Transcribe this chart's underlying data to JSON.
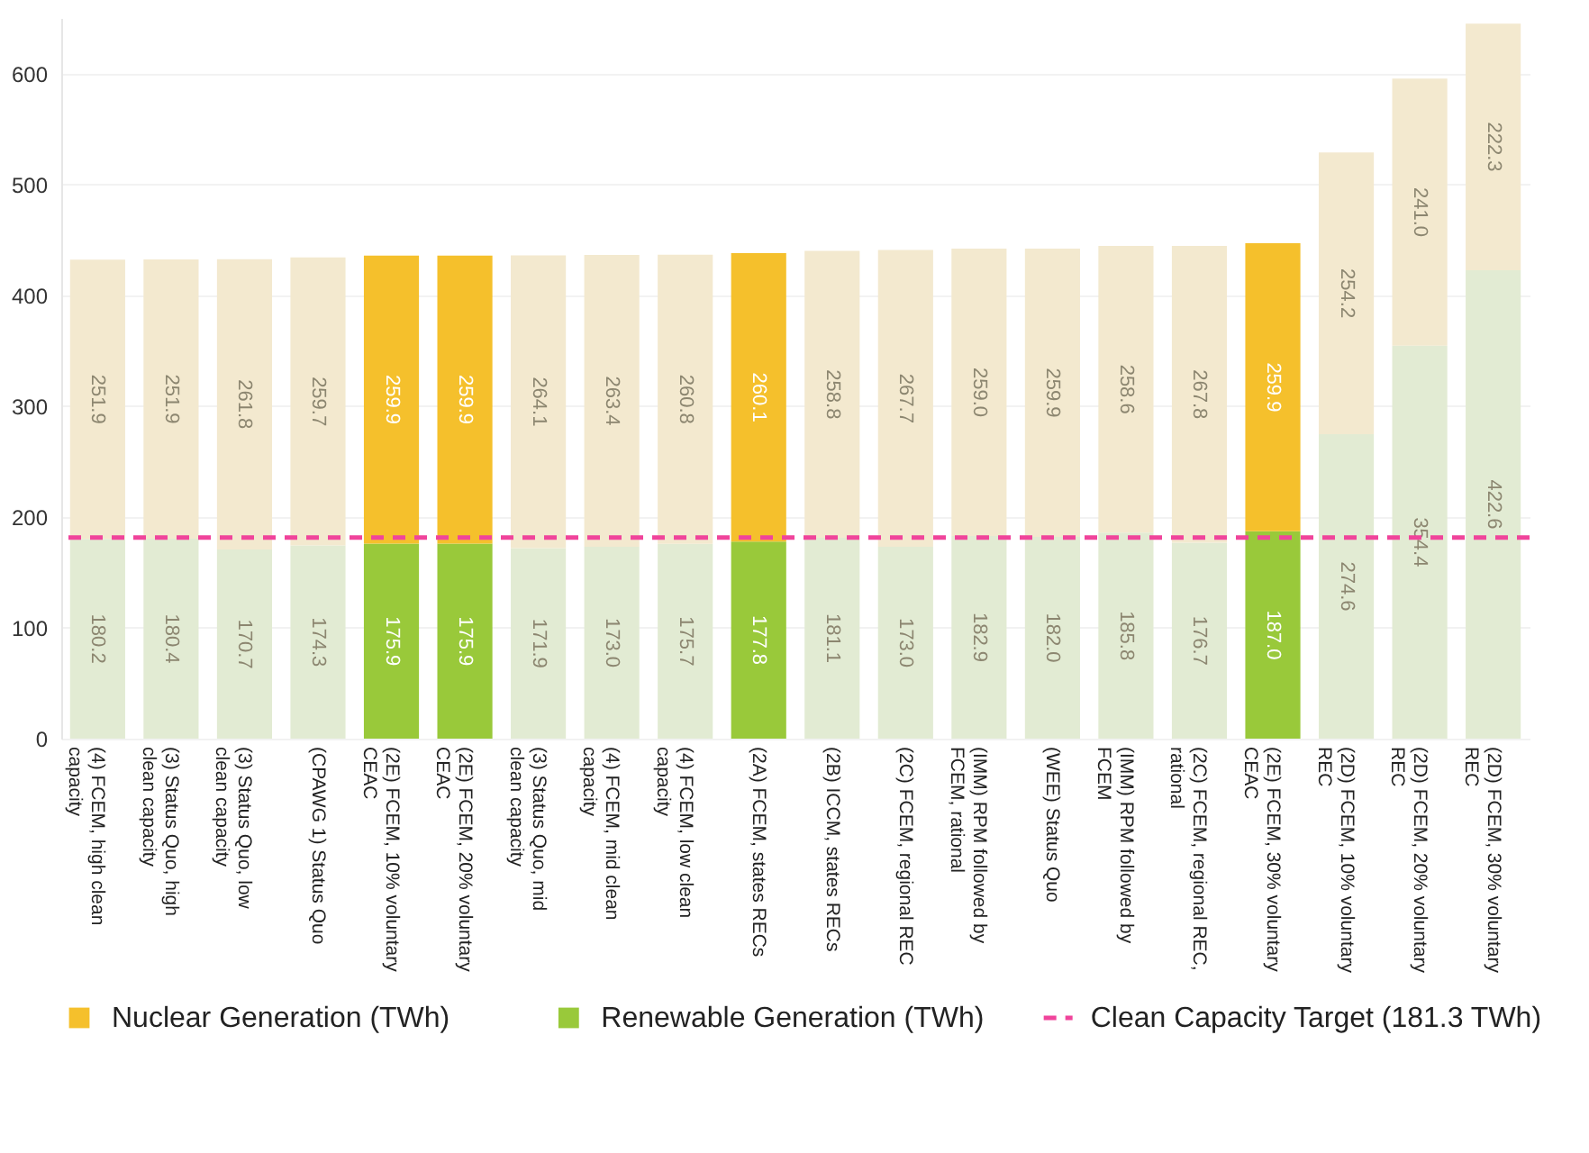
{
  "chart_data": {
    "type": "bar",
    "stacked": true,
    "categories": [
      "(4) FCEM, high clean capacity",
      "(3) Status Quo, high clean capacity",
      "(3) Status Quo, low clean capacity",
      "(CPAWG 1) Status Quo",
      "(2E) FCEM, 10% voluntary CEAC",
      "(2E) FCEM, 20% voluntary CEAC",
      "(3) Status Quo, mid clean capacity",
      "(4) FCEM, mid clean capacity",
      "(4) FCEM, low clean capacity",
      "(2A) FCEM, states RECs",
      "(2B) ICCM, states RECs",
      "(2C) FCEM, regional REC",
      "(IMM) RPM followed by FCEM, rational",
      "(WEE) Status Quo",
      "(IMM) RPM followed by FCEM",
      "(2C) FCEM, regional REC, rational",
      "(2E) FCEM, 30% voluntary CEAC",
      "(2D) FCEM, 10% voluntary REC",
      "(2D) FCEM, 20% voluntary REC",
      "(2D) FCEM, 30% voluntary REC"
    ],
    "series": [
      {
        "name": "Renewable Generation (TWh)",
        "color": "#99c93a",
        "values": [
          180.2,
          180.4,
          170.7,
          174.3,
          175.9,
          175.9,
          171.9,
          173.0,
          175.7,
          177.8,
          181.1,
          173.0,
          182.9,
          182.0,
          185.8,
          176.7,
          187.0,
          274.6,
          354.4,
          422.6
        ],
        "value_labels": [
          "180.2",
          "180.4",
          "170.7",
          "174.3",
          "175.9",
          "175.9",
          "171.9",
          "173.0",
          "175.7",
          "177.8",
          "181.1",
          "173.0",
          "182.9",
          "182.0",
          "185.8",
          "176.7",
          "187.0",
          "274.6",
          "354.4",
          "422.6"
        ],
        "colors": [
          "#e2ebd3",
          "#e2ebd3",
          "#e2ebd3",
          "#e2ebd3",
          "#99c93a",
          "#99c93a",
          "#e2ebd3",
          "#e2ebd3",
          "#e2ebd3",
          "#99c93a",
          "#e2ebd3",
          "#e2ebd3",
          "#e2ebd3",
          "#e2ebd3",
          "#e2ebd3",
          "#e2ebd3",
          "#99c93a",
          "#e2ebd3",
          "#e2ebd3",
          "#e2ebd3"
        ]
      },
      {
        "name": "Nuclear Generation (TWh)",
        "color": "#f5c02c",
        "values": [
          251.9,
          251.9,
          261.8,
          259.7,
          259.9,
          259.9,
          264.1,
          263.4,
          260.8,
          260.1,
          258.8,
          267.7,
          259.0,
          259.9,
          258.6,
          267.8,
          259.9,
          254.2,
          241.0,
          222.3
        ],
        "value_labels": [
          "251.9",
          "251.9",
          "261.8",
          "259.7",
          "259.9",
          "259.9",
          "264.1",
          "263.4",
          "260.8",
          "260.1",
          "258.8",
          "267.7",
          "259.0",
          "259.9",
          "258.6",
          "267.8",
          "259.9",
          "254.2",
          "241.0",
          "222.3"
        ],
        "colors": [
          "#f3e9cf",
          "#f3e9cf",
          "#f3e9cf",
          "#f3e9cf",
          "#f5c02c",
          "#f5c02c",
          "#f3e9cf",
          "#f3e9cf",
          "#f3e9cf",
          "#f5c02c",
          "#f3e9cf",
          "#f3e9cf",
          "#f3e9cf",
          "#f3e9cf",
          "#f3e9cf",
          "#f3e9cf",
          "#f5c02c",
          "#f3e9cf",
          "#f3e9cf",
          "#f3e9cf"
        ]
      }
    ],
    "ylim": [
      0,
      650
    ],
    "yticks": [
      0,
      100,
      200,
      300,
      400,
      500,
      600
    ],
    "grid": "y",
    "legend": "bottom",
    "ref_lines": [
      {
        "axis": "y",
        "value": 181.3,
        "label": "Clean Capacity Target (181.3 TWh)",
        "color": "#f0449b",
        "line_style": "dashed"
      }
    ]
  }
}
